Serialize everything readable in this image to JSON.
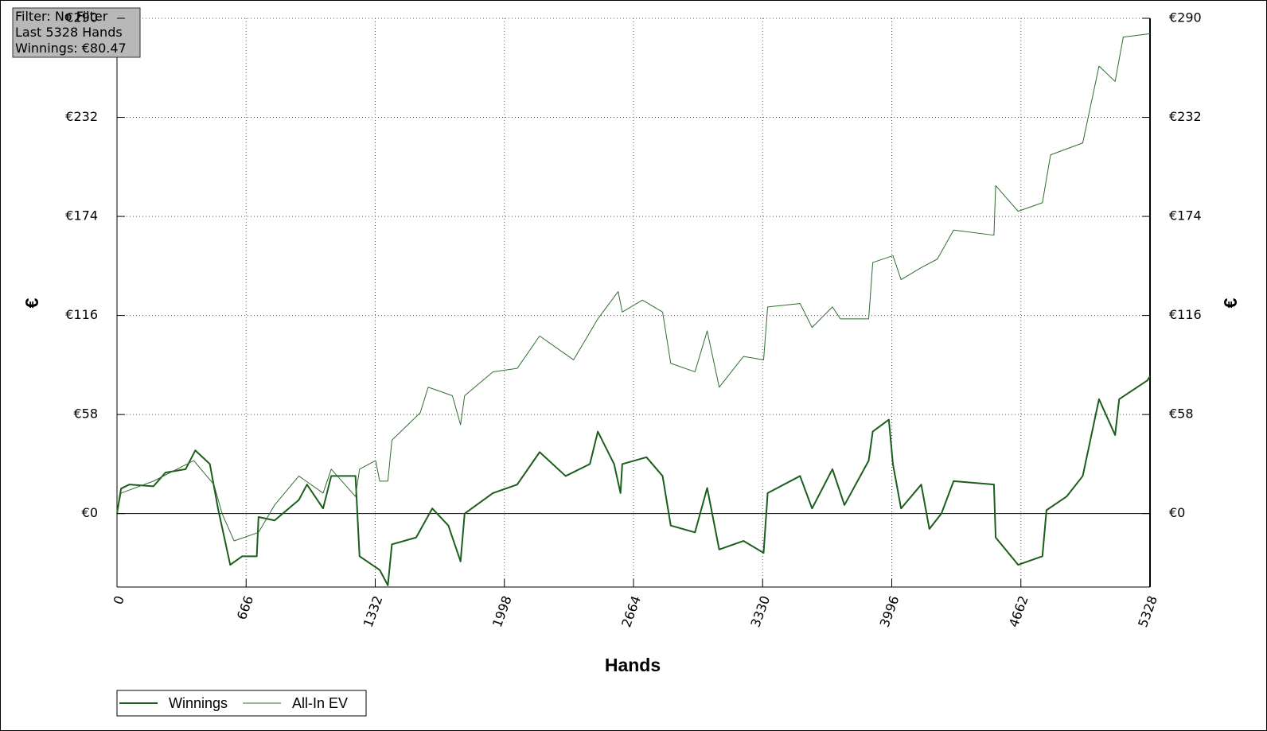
{
  "chart_data": {
    "type": "line",
    "info": [
      "Filter: No Filter",
      "Last  5328 Hands",
      "Winnings: €80.47"
    ],
    "xlabel": "Hands",
    "ylabel": "€",
    "y2label": "€",
    "xlim": [
      0,
      5328
    ],
    "xticks": [
      0,
      666,
      1332,
      1998,
      2664,
      3330,
      3996,
      4662,
      5328
    ],
    "ylim": [
      -43,
      290
    ],
    "yticks": [
      {
        "value": 0,
        "label": "€0"
      },
      {
        "value": 58,
        "label": "€58"
      },
      {
        "value": 116,
        "label": "€116"
      },
      {
        "value": 174,
        "label": "€174"
      },
      {
        "value": 232,
        "label": "€232"
      },
      {
        "value": 290,
        "label": "€290"
      }
    ],
    "y2lim": [
      -43,
      290
    ],
    "y2ticks": [
      {
        "value": 0,
        "label": "€0"
      },
      {
        "value": 58,
        "label": "€58"
      },
      {
        "value": 116,
        "label": "€116"
      },
      {
        "value": 174,
        "label": "€174"
      },
      {
        "value": 232,
        "label": "€232"
      },
      {
        "value": 290,
        "label": "€290"
      }
    ],
    "grid": true,
    "series": [
      {
        "name": "Winnings",
        "color": "#1b5e1b",
        "x": [
          0,
          21,
          63,
          188,
          250,
          354,
          404,
          479,
          521,
          584,
          646,
          721,
          730,
          813,
          938,
          980,
          1063,
          1105,
          1230,
          1251,
          1355,
          1397,
          1418,
          1543,
          1626,
          1709,
          1772,
          1793,
          1939,
          2064,
          2180,
          2314,
          2439,
          2480,
          2564,
          2597,
          2606,
          2731,
          2814,
          2856,
          2981,
          3044,
          3106,
          3231,
          3335,
          3356,
          3523,
          3585,
          3690,
          3752,
          3877,
          3898,
          3981,
          4002,
          4044,
          4148,
          4190,
          4252,
          4315,
          4523,
          4532,
          4648,
          4773,
          4794,
          4898,
          4981,
          5065,
          5148,
          5169,
          5315,
          5328
        ],
        "values": [
          0,
          14.6,
          17,
          16,
          24,
          26,
          37,
          29,
          3,
          -30,
          -25,
          -25,
          -2,
          -4,
          8,
          17,
          3,
          22,
          22,
          -25,
          -33,
          -42,
          -18,
          -14,
          3,
          -7,
          -28,
          0,
          12,
          17,
          36,
          22,
          29,
          48,
          29,
          12,
          29,
          33,
          22,
          -7,
          -11,
          15,
          -21,
          -16,
          -23,
          12,
          22,
          3,
          26,
          5,
          31,
          48,
          55,
          29,
          3,
          17,
          -9,
          0,
          19,
          17,
          -14,
          -30,
          -25,
          2,
          10,
          22,
          67,
          46,
          67,
          78,
          80.47
        ]
      },
      {
        "name": "All-In EV",
        "color": "#2e6e2e",
        "x": [
          0,
          21,
          188,
          396,
          500,
          542,
          604,
          730,
          813,
          938,
          1063,
          1105,
          1230,
          1251,
          1334,
          1355,
          1397,
          1418,
          1564,
          1605,
          1730,
          1772,
          1793,
          1939,
          2064,
          2180,
          2355,
          2480,
          2585,
          2606,
          2710,
          2814,
          2856,
          2981,
          3044,
          3106,
          3231,
          3335,
          3356,
          3523,
          3585,
          3690,
          3731,
          3877,
          3898,
          4002,
          4044,
          4148,
          4231,
          4315,
          4523,
          4532,
          4648,
          4773,
          4815,
          4981,
          5065,
          5148,
          5190,
          5328
        ],
        "values": [
          0,
          12,
          19,
          31,
          17,
          0,
          -16,
          -11,
          5,
          22,
          12,
          26,
          10,
          26,
          31,
          19,
          19,
          43,
          59,
          74,
          69,
          52,
          69,
          83,
          85,
          104,
          90,
          114,
          130,
          118,
          125,
          118,
          88,
          83,
          107,
          74,
          92,
          90,
          121,
          123,
          109,
          121,
          114,
          114,
          147,
          151,
          137,
          144,
          149,
          166,
          163,
          192,
          177,
          182,
          210,
          217,
          262,
          253,
          279,
          281
        ]
      }
    ]
  }
}
